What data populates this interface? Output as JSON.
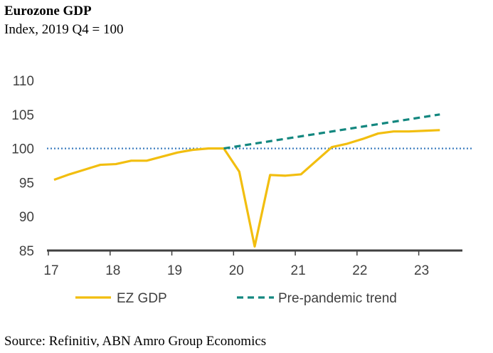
{
  "colors": {
    "gdp": "#F2BE0F",
    "trend": "#13877F",
    "reference": "#3E7EBF",
    "axis": "#404040"
  },
  "chart_data": {
    "type": "line",
    "title": "Eurozone GDP",
    "subtitle": "Index, 2019 Q4 = 100",
    "source": "Source: Refinitiv, ABN Amro Group Economics",
    "ylim": [
      85,
      110
    ],
    "yticks": [
      {
        "value": 85,
        "label": "85"
      },
      {
        "value": 90,
        "label": "90"
      },
      {
        "value": 95,
        "label": "95"
      },
      {
        "value": 100,
        "label": "100"
      },
      {
        "value": 105,
        "label": "105"
      },
      {
        "value": 110,
        "label": "110"
      }
    ],
    "xlim": [
      2017.0,
      2023.5
    ],
    "xticks": [
      {
        "value": 2017,
        "label": "17"
      },
      {
        "value": 2018,
        "label": "18"
      },
      {
        "value": 2019,
        "label": "19"
      },
      {
        "value": 2020,
        "label": "20"
      },
      {
        "value": 2021,
        "label": "21"
      },
      {
        "value": 2022,
        "label": "22"
      },
      {
        "value": 2023,
        "label": "23"
      }
    ],
    "reference_line": {
      "value": 100,
      "style": "dotted"
    },
    "series": [
      {
        "name": "EZ GDP",
        "style": "solid",
        "x": [
          2017.0,
          2017.25,
          2017.5,
          2017.75,
          2018.0,
          2018.25,
          2018.5,
          2018.75,
          2019.0,
          2019.25,
          2019.5,
          2019.75,
          2020.0,
          2020.25,
          2020.5,
          2020.75,
          2021.0,
          2021.25,
          2021.5,
          2021.75,
          2022.0,
          2022.25,
          2022.5,
          2022.75,
          2023.0,
          2023.25
        ],
        "values": [
          95.4,
          96.2,
          96.9,
          97.6,
          97.7,
          98.2,
          98.2,
          98.8,
          99.4,
          99.8,
          100.0,
          100.0,
          96.6,
          85.6,
          96.1,
          96.0,
          96.2,
          98.2,
          100.2,
          100.7,
          101.4,
          102.2,
          102.5,
          102.5,
          102.6,
          102.7
        ]
      },
      {
        "name": "Pre-pandemic trend",
        "style": "dashed",
        "x": [
          2019.75,
          2023.25
        ],
        "values": [
          100.0,
          105.0
        ]
      }
    ],
    "legend": {
      "placement": "bottom",
      "entries": [
        "EZ GDP",
        "Pre-pandemic trend"
      ]
    }
  }
}
